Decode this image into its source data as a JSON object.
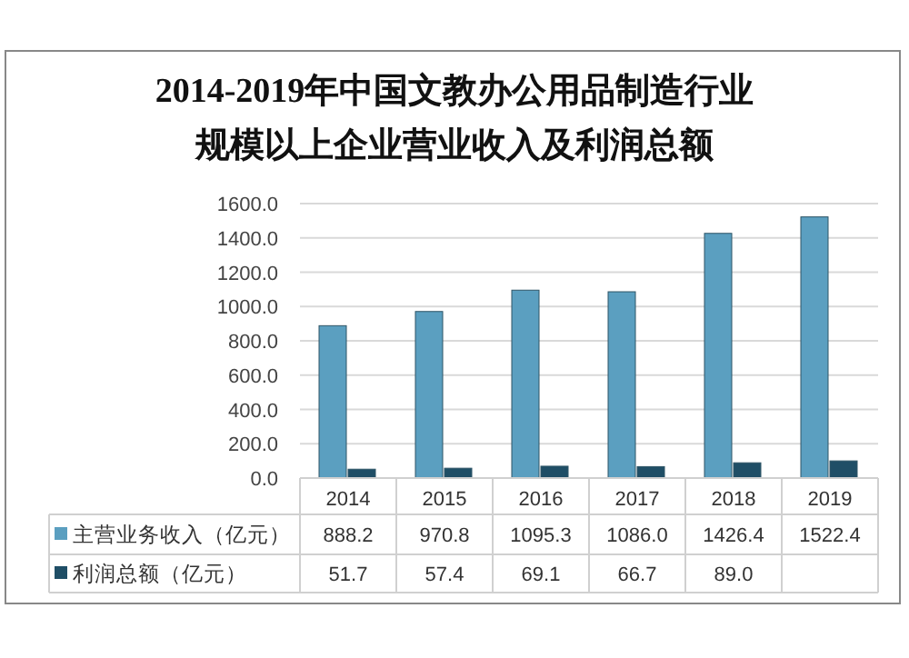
{
  "chart_data": {
    "type": "bar",
    "title": "2014-2019年中国文教办公用品制造行业规模以上企业营业收入及利润总额",
    "categories": [
      "2014",
      "2015",
      "2016",
      "2017",
      "2018",
      "2019"
    ],
    "series": [
      {
        "name": "主营业务收入（亿元）",
        "color": "#5b9fc0",
        "values": [
          888.2,
          970.8,
          1095.3,
          1086.0,
          1426.4,
          1522.4
        ],
        "value_labels": [
          "888.2",
          "970.8",
          "1095.3",
          "1086.0",
          "1426.4",
          "1522.4"
        ]
      },
      {
        "name": "利润总额（亿元）",
        "color": "#1f4e66",
        "values": [
          51.7,
          57.4,
          69.1,
          66.7,
          89.0,
          100
        ],
        "value_labels": [
          "51.7",
          "57.4",
          "69.1",
          "66.7",
          "89.0",
          null
        ]
      }
    ],
    "ylim": [
      0,
      1600
    ],
    "yticks": [
      {
        "value": 0,
        "label": "0.0"
      },
      {
        "value": 200,
        "label": "200.0"
      },
      {
        "value": 400,
        "label": "400.0"
      },
      {
        "value": 600,
        "label": "600.0"
      },
      {
        "value": 800,
        "label": "800.0"
      },
      {
        "value": 1000,
        "label": "1000.0"
      },
      {
        "value": 1200,
        "label": "1200.0"
      },
      {
        "value": 1400,
        "label": "1400.0"
      },
      {
        "value": 1600,
        "label": "1600.0"
      }
    ],
    "grid": "y",
    "legend": "bottom"
  }
}
